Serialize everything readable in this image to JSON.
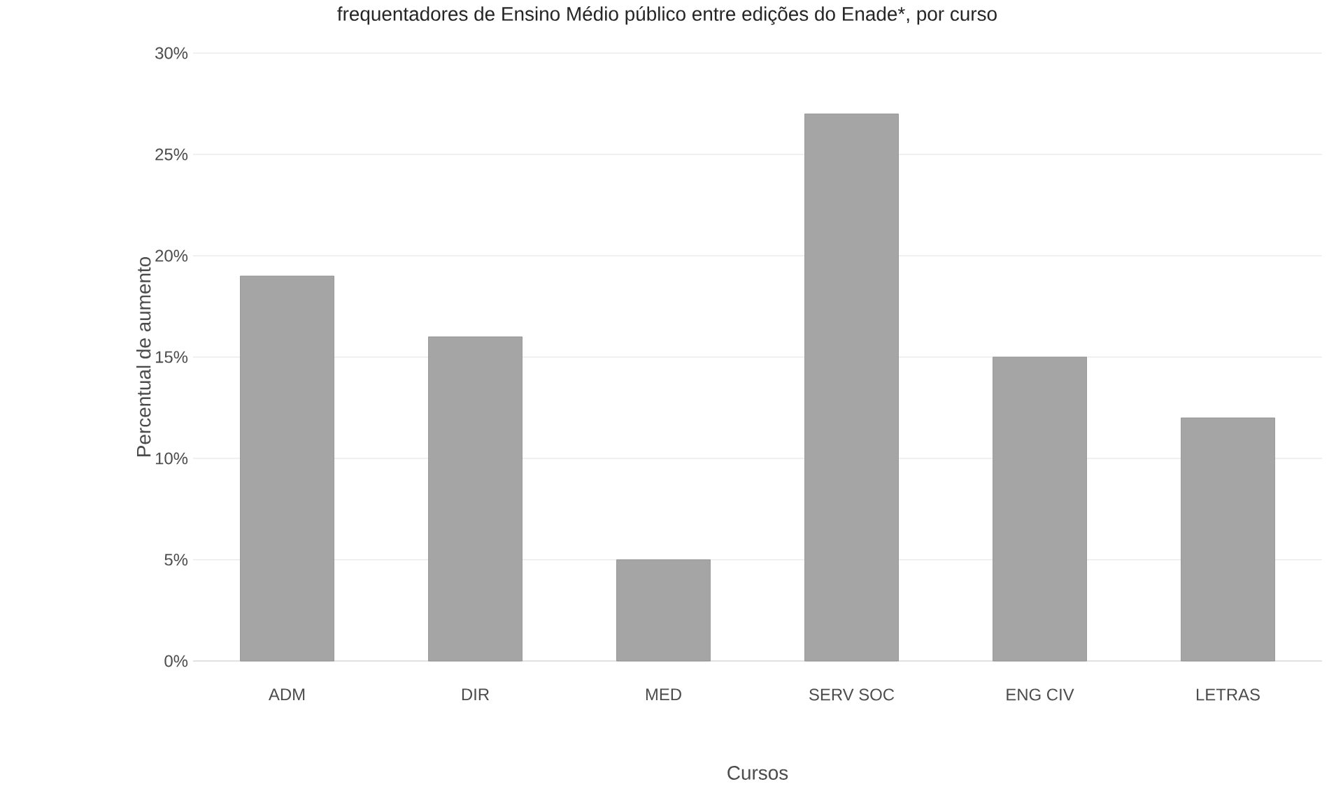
{
  "chart_data": {
    "type": "bar",
    "title": "frequentadores de Ensino Médio público entre edições do Enade*, por curso",
    "xlabel": "Cursos",
    "ylabel": "Percentual de aumento",
    "categories": [
      "ADM",
      "DIR",
      "MED",
      "SERV SOC",
      "ENG CIV",
      "LETRAS"
    ],
    "values": [
      19,
      16,
      5,
      27,
      15,
      12
    ],
    "color": "#a5a5a5",
    "ylim": [
      0,
      30
    ],
    "yticks": [
      {
        "value": 0,
        "label": "0%"
      },
      {
        "value": 5,
        "label": "5%"
      },
      {
        "value": 10,
        "label": "10%"
      },
      {
        "value": 15,
        "label": "15%"
      },
      {
        "value": 20,
        "label": "20%"
      },
      {
        "value": 25,
        "label": "25%"
      },
      {
        "value": 30,
        "label": "30%"
      }
    ],
    "grid": "y"
  }
}
